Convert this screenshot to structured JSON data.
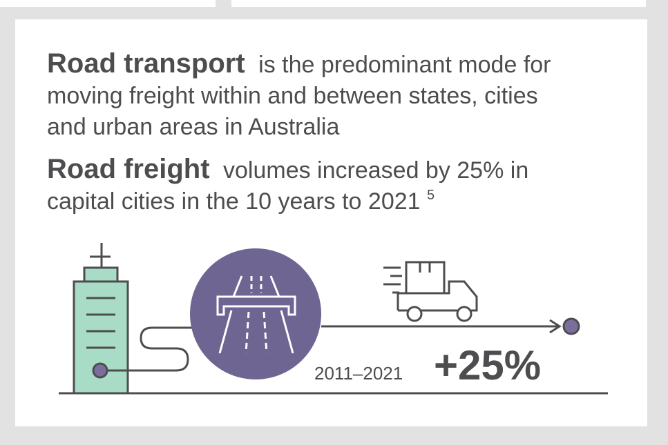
{
  "paragraph_1": {
    "bold": "Road transport",
    "lines": [
      "is the predominant mode for",
      "moving freight within and between states, cities",
      "and urban areas in Australia"
    ]
  },
  "paragraph_2": {
    "bold": "Road freight",
    "lines": [
      "volumes increased by 25% in",
      "capital cities in the 10 years to 2021"
    ],
    "footnote": "5"
  },
  "graphic": {
    "period": "2011–2021",
    "change": "+25%"
  }
}
